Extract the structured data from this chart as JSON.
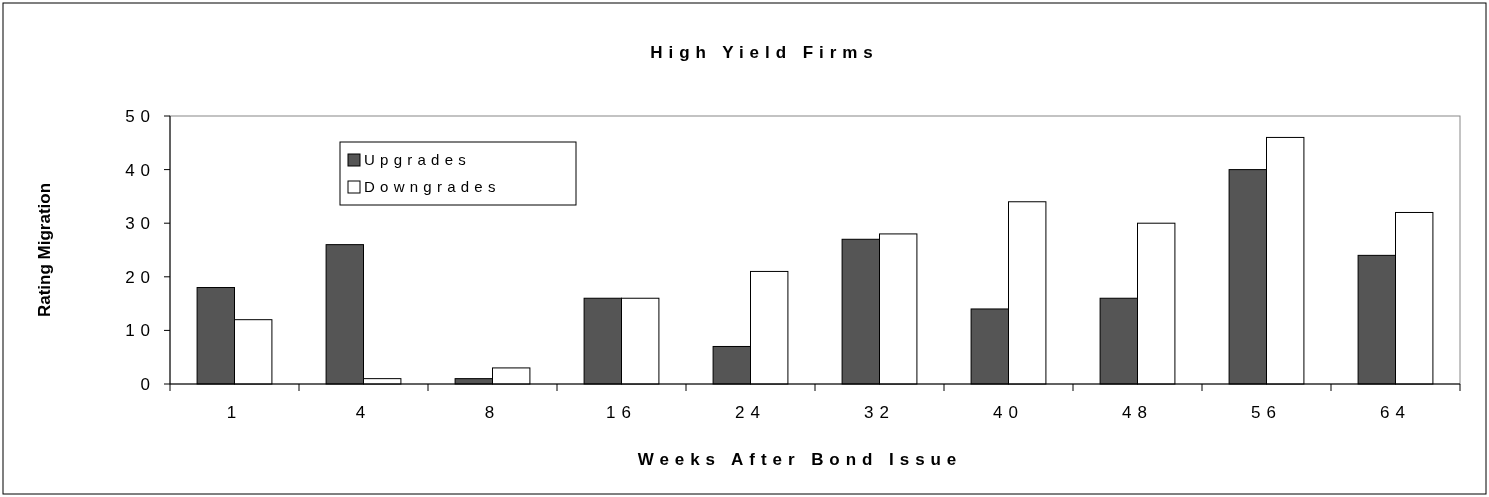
{
  "chart_data": {
    "type": "bar",
    "title": "High Yield Firms",
    "xlabel": "Weeks After Bond Issue",
    "ylabel": "Rating Migration",
    "categories": [
      "1",
      "4",
      "8",
      "16",
      "24",
      "32",
      "40",
      "48",
      "56",
      "64"
    ],
    "series": [
      {
        "name": "Upgrades",
        "color": "#555555",
        "values": [
          18,
          26,
          1,
          16,
          7,
          27,
          14,
          16,
          40,
          24
        ]
      },
      {
        "name": "Downgrades",
        "color": "#ffffff",
        "values": [
          12,
          1,
          3,
          16,
          21,
          28,
          34,
          30,
          46,
          32
        ]
      }
    ],
    "ylim": [
      0,
      50
    ],
    "yticks": [
      0,
      10,
      20,
      30,
      40,
      50
    ],
    "grid": false,
    "legend": "top left"
  }
}
